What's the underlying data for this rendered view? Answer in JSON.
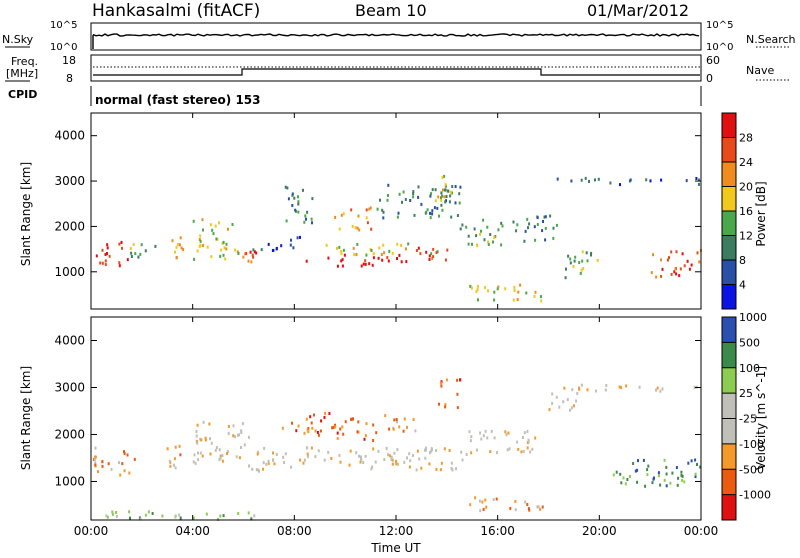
{
  "header": {
    "station": "Hankasalmi (fitACF)",
    "beam": "Beam 10",
    "date": "01/Mar/2012"
  },
  "top_panels": {
    "nsky_label": "N.Sky",
    "nsearch_label": "N.Search",
    "nsky_ticks": [
      "10^5",
      "10^0"
    ],
    "nsearch_ticks": [
      "10^5",
      "10^0"
    ],
    "freq_label": "Freq.",
    "freq_unit": "[MHz]",
    "freq_ticks": [
      "18",
      "8"
    ],
    "nave_label": "Nave",
    "nave_ticks": [
      "60",
      "0"
    ],
    "cpid_label": "CPID",
    "cpid_text": "normal (fast stereo) 153"
  },
  "colors": {
    "power": [
      "#0b12e6",
      "#2a4fa6",
      "#3c7d62",
      "#4aa84a",
      "#f0c81e",
      "#f08c1e",
      "#e84a1a",
      "#e01010"
    ],
    "velocity": [
      "#e01010",
      "#ec5a10",
      "#f59a2a",
      "#c0c0b8",
      "#c0c0b8",
      "#8ccc50",
      "#3c8a4a",
      "#2a4fb0"
    ]
  },
  "chart_data": [
    {
      "type": "heatmap",
      "title": "",
      "xlabel": "Time UT",
      "ylabel": "Slant Range [km]",
      "xticks": [
        "00:00",
        "04:00",
        "08:00",
        "12:00",
        "16:00",
        "20:00",
        "00:00"
      ],
      "yticks": [
        "1000",
        "2000",
        "3000",
        "4000"
      ],
      "xlim": [
        0,
        24
      ],
      "ylim": [
        180,
        4500
      ],
      "colorbar": {
        "label": "Power [dB]",
        "ticks": [
          "4",
          "8",
          "12",
          "16",
          "20",
          "24",
          "28"
        ],
        "range": [
          0,
          32
        ]
      },
      "regions": [
        {
          "t": [
            0.0,
            1.5
          ],
          "r": [
            1150,
            1700
          ],
          "level": 7
        },
        {
          "t": [
            1.5,
            2.5
          ],
          "r": [
            1250,
            1650
          ],
          "level": 3
        },
        {
          "t": [
            2.9,
            3.6
          ],
          "r": [
            1300,
            1800
          ],
          "level": 5
        },
        {
          "t": [
            4.0,
            5.8
          ],
          "r": [
            1300,
            2200
          ],
          "level": 4
        },
        {
          "t": [
            5.8,
            6.5
          ],
          "r": [
            1250,
            1600
          ],
          "level": 6
        },
        {
          "t": [
            6.2,
            8.2
          ],
          "r": [
            1500,
            1800
          ],
          "level": 1
        },
        {
          "t": [
            7.5,
            8.8
          ],
          "r": [
            2100,
            2900
          ],
          "level": 2
        },
        {
          "t": [
            8.3,
            12.5
          ],
          "r": [
            1150,
            1400
          ],
          "level": 7
        },
        {
          "t": [
            8.8,
            13.8
          ],
          "r": [
            1400,
            1650
          ],
          "level": 4
        },
        {
          "t": [
            9.5,
            11.0
          ],
          "r": [
            1950,
            2450
          ],
          "level": 5
        },
        {
          "t": [
            11.0,
            14.5
          ],
          "r": [
            2200,
            3000
          ],
          "level": 2
        },
        {
          "t": [
            12.5,
            14.2
          ],
          "r": [
            1250,
            1600
          ],
          "level": 6
        },
        {
          "t": [
            13.5,
            14.2
          ],
          "r": [
            2500,
            3200
          ],
          "level": 4
        },
        {
          "t": [
            14.5,
            16.5
          ],
          "r": [
            1600,
            2200
          ],
          "level": 3
        },
        {
          "t": [
            14.7,
            17.8
          ],
          "r": [
            380,
            750
          ],
          "level": 4
        },
        {
          "t": [
            16.5,
            18.3
          ],
          "r": [
            1700,
            2300
          ],
          "level": 2
        },
        {
          "t": [
            18.3,
            24.0
          ],
          "r": [
            2950,
            3100
          ],
          "level": 1
        },
        {
          "t": [
            18.5,
            20.0
          ],
          "r": [
            900,
            1500
          ],
          "level": 3
        },
        {
          "t": [
            22.0,
            24.0
          ],
          "r": [
            900,
            1500
          ],
          "level": 6
        }
      ]
    },
    {
      "type": "heatmap",
      "title": "",
      "xlabel": "Time UT",
      "ylabel": "Slant Range [km]",
      "xticks": [
        "00:00",
        "04:00",
        "08:00",
        "12:00",
        "16:00",
        "20:00",
        "00:00"
      ],
      "yticks": [
        "1000",
        "2000",
        "3000",
        "4000"
      ],
      "xlim": [
        0,
        24
      ],
      "ylim": [
        180,
        4500
      ],
      "colorbar": {
        "label": "Velocity [m s^-1]",
        "ticks": [
          "-1000",
          "-500",
          "-100",
          "-25",
          "25",
          "100",
          "500",
          "1000"
        ]
      },
      "regions": [
        {
          "t": [
            0.0,
            1.8
          ],
          "r": [
            1150,
            1750
          ],
          "level": 2
        },
        {
          "t": [
            2.9,
            3.5
          ],
          "r": [
            1300,
            1800
          ],
          "level": 2
        },
        {
          "t": [
            4.0,
            6.2
          ],
          "r": [
            1300,
            2300
          ],
          "level": 3
        },
        {
          "t": [
            6.2,
            15.0
          ],
          "r": [
            1250,
            1750
          ],
          "level": 3
        },
        {
          "t": [
            7.5,
            9.5
          ],
          "r": [
            2000,
            2500
          ],
          "level": 1
        },
        {
          "t": [
            9.5,
            11.2
          ],
          "r": [
            1900,
            2500
          ],
          "level": 1
        },
        {
          "t": [
            11.5,
            13.0
          ],
          "r": [
            2100,
            2500
          ],
          "level": 2
        },
        {
          "t": [
            13.6,
            14.5
          ],
          "r": [
            2600,
            3200
          ],
          "level": 1
        },
        {
          "t": [
            14.5,
            17.5
          ],
          "r": [
            1600,
            2100
          ],
          "level": 3
        },
        {
          "t": [
            14.8,
            17.8
          ],
          "r": [
            380,
            700
          ],
          "level": 2
        },
        {
          "t": [
            18.0,
            19.2
          ],
          "r": [
            2500,
            3000
          ],
          "level": 3
        },
        {
          "t": [
            18.5,
            24.0
          ],
          "r": [
            2950,
            3100
          ],
          "level": 3
        },
        {
          "t": [
            0.0,
            6.5
          ],
          "r": [
            200,
            400
          ],
          "level": 5
        },
        {
          "t": [
            20.5,
            24.0
          ],
          "r": [
            900,
            1500
          ],
          "level": 6
        }
      ]
    }
  ]
}
